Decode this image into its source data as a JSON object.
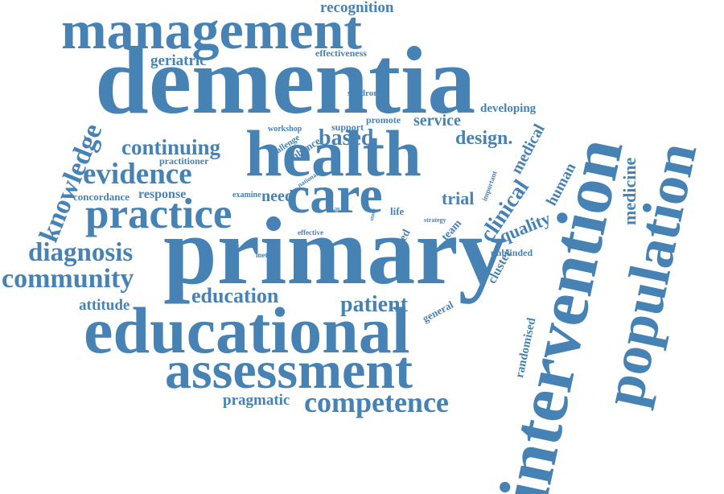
{
  "palette": {
    "word_color": "#4682b4",
    "background": "#ffffff"
  },
  "words": {
    "recognition": "recognition",
    "management": "management",
    "dementia": "dementia",
    "geriatric": "geriatric",
    "effectiveness": "effectiveness",
    "knowledge": "knowledge",
    "syndrome": "syndrome",
    "developing": "developing",
    "promote": "promote",
    "service": "service",
    "support": "support",
    "workshop": "workshop",
    "challenge": "challenge",
    "enhance": "enhance",
    "based": "based",
    "design": "design.",
    "continuing": "continuing",
    "health": "health",
    "medical": "medical",
    "practitioner": "practitioner",
    "evidence": "evidence",
    "national": "national",
    "important": "important",
    "concordance": "concordance",
    "response": "response",
    "examine": "examine",
    "need": "need",
    "care": "care",
    "trial": "trial",
    "clinical": "clinical",
    "human": "human",
    "medicine": "medicine",
    "practice": "practice",
    "skill": "skill",
    "life": "life",
    "study": "study",
    "strategy": "strategy",
    "quality": "quality",
    "effective": "effective",
    "aged": "aged",
    "team": "team",
    "unblinded": "unblinded",
    "diagnosis": "diagnosis",
    "primary": "primary",
    "method": "method",
    "cluster": "cluster",
    "community": "community",
    "education": "education",
    "attitude": "attitude",
    "patient": "patient",
    "general": "general",
    "educational": "educational",
    "randomised": "randomised",
    "assessment": "assessment",
    "pragmatic": "pragmatic",
    "competence": "competence",
    "intervention": "intervention",
    "population": "population"
  }
}
